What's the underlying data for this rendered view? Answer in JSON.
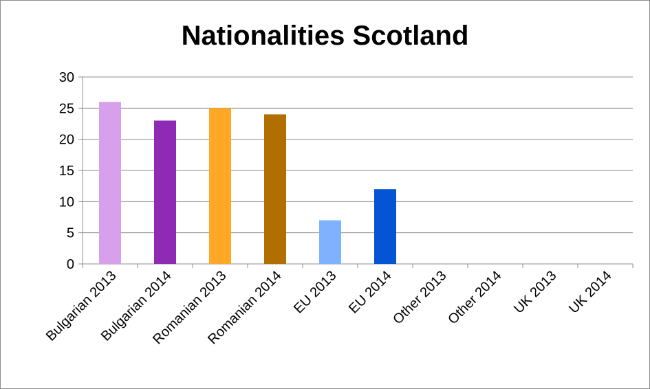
{
  "chart_data": {
    "type": "bar",
    "title": "Nationalities Scotland",
    "xlabel": "",
    "ylabel": "",
    "categories": [
      "Bulgarian 2013",
      "Bulgarian 2014",
      "Romanian 2013",
      "Romanian 2014",
      "EU 2013",
      "EU 2014",
      "Other 2013",
      "Other 2014",
      "UK 2013",
      "UK 2014"
    ],
    "values": [
      26,
      23,
      25,
      24,
      7,
      12,
      0,
      0,
      0,
      0
    ],
    "bar_colors": [
      "#d6a0ea",
      "#8e2ab4",
      "#ffa826",
      "#b06f00",
      "#7eb2ff",
      "#0454d4",
      "#ffffff",
      "#ffffff",
      "#ffffff",
      "#ffffff"
    ],
    "ylim": [
      0,
      30
    ],
    "yticks": [
      0,
      5,
      10,
      15,
      20,
      25,
      30
    ],
    "grid": true,
    "legend": "none"
  }
}
